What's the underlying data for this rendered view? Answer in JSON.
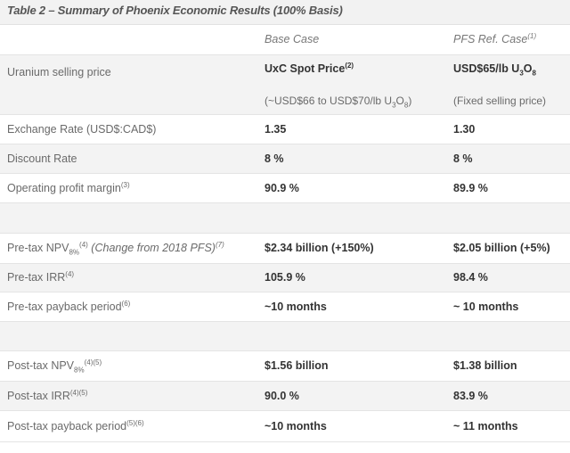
{
  "title": "Table 2 – Summary of Phoenix Economic Results (100% Basis)",
  "header": {
    "col1": "",
    "col2": "Base Case",
    "col3": "PFS Ref. Case",
    "col3_sup": "(1)"
  },
  "rows": {
    "uranium": {
      "label": "Uranium selling price",
      "base_main": "UxC Spot Price",
      "base_main_sup": "(2)",
      "base_sub_pre": "(~USD$66 to USD$70/lb U",
      "base_sub_3": "3",
      "base_sub_o": "O",
      "base_sub_8": "8",
      "base_sub_post": ")",
      "pfs_main_pre": "USD$65/lb U",
      "pfs_main_3": "3",
      "pfs_main_o": "O",
      "pfs_main_8": "8",
      "pfs_sub": "(Fixed selling price)"
    },
    "exchange": {
      "label": "Exchange Rate (USD$:CAD$)",
      "base": "1.35",
      "pfs": "1.30"
    },
    "discount": {
      "label": "Discount Rate",
      "base": "8 %",
      "pfs": "8 %"
    },
    "margin": {
      "label": "Operating profit margin",
      "label_sup": "(3)",
      "base": "90.9 %",
      "pfs": "89.9 %"
    },
    "pre_npv": {
      "label": "Pre-tax NPV",
      "label_sub": "8%",
      "label_sup": "(4)",
      "label_note": "(Change from 2018 PFS)",
      "label_note_sup": "(7)",
      "base": "$2.34 billion (+150%)",
      "pfs": "$2.05 billion (+5%)"
    },
    "pre_irr": {
      "label": "Pre-tax IRR",
      "label_sup": "(4)",
      "base": "105.9 %",
      "pfs": "98.4 %"
    },
    "pre_payback": {
      "label": "Pre-tax payback period",
      "label_sup": "(6)",
      "base": "~10 months",
      "pfs": "~ 10 months"
    },
    "post_npv": {
      "label": "Post-tax NPV",
      "label_sub": "8%",
      "label_sup": "(4)(5)",
      "base": "$1.56 billion",
      "pfs": "$1.38 billion"
    },
    "post_irr": {
      "label": "Post-tax IRR",
      "label_sup": "(4)(5)",
      "base": "90.0 %",
      "pfs": "83.9 %"
    },
    "post_payback": {
      "label": "Post-tax payback period",
      "label_sup": "(5)(6)",
      "base": "~10 months",
      "pfs": "~ 11 months"
    }
  }
}
